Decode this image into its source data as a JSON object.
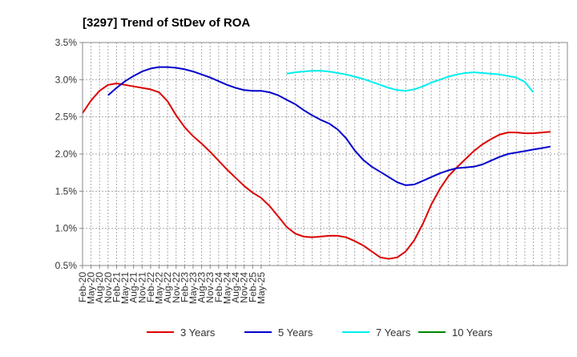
{
  "chart_data": {
    "type": "line",
    "title": "[3297]  Trend of StDev of ROA",
    "xlabel": "",
    "ylabel": "",
    "x_ticks": [
      "Feb-20",
      "May-20",
      "Aug-20",
      "Nov-20",
      "Feb-21",
      "May-21",
      "Aug-21",
      "Nov-21",
      "Feb-22",
      "May-22",
      "Aug-22",
      "Nov-22",
      "Feb-23",
      "May-23",
      "Aug-23",
      "Nov-23",
      "Feb-24",
      "May-24",
      "Aug-24",
      "Nov-24",
      "Feb-25",
      "May-25"
    ],
    "y_ticks": [
      "0.5%",
      "1.0%",
      "1.5%",
      "2.0%",
      "2.5%",
      "3.0%",
      "3.5%"
    ],
    "ylim": [
      0.5,
      3.5
    ],
    "grid": true,
    "legend_position": "bottom",
    "series": [
      {
        "name": "3 Years",
        "color": "#dd0000",
        "values": [
          2.55,
          2.72,
          2.85,
          2.93,
          2.95,
          2.93,
          2.91,
          2.89,
          2.87,
          2.83,
          2.71,
          2.52,
          2.36,
          2.24,
          2.14,
          2.03,
          1.91,
          1.79,
          1.68,
          1.57,
          1.48,
          1.41,
          1.3,
          1.16,
          1.02,
          0.93,
          0.89,
          0.88,
          0.89,
          0.9,
          0.9,
          0.88,
          0.83,
          0.77,
          0.69,
          0.61,
          0.59,
          0.61,
          0.69,
          0.84,
          1.06,
          1.32,
          1.53,
          1.7,
          1.82,
          1.93,
          2.04,
          2.13,
          2.2,
          2.26,
          2.29,
          2.29,
          2.28,
          2.28,
          2.29,
          2.3
        ]
      },
      {
        "name": "5 Years",
        "color": "#0000cc",
        "values": [
          null,
          null,
          null,
          2.79,
          2.89,
          2.98,
          3.05,
          3.11,
          3.15,
          3.17,
          3.17,
          3.16,
          3.14,
          3.11,
          3.07,
          3.03,
          2.98,
          2.93,
          2.89,
          2.86,
          2.85,
          2.85,
          2.83,
          2.79,
          2.73,
          2.67,
          2.59,
          2.52,
          2.46,
          2.41,
          2.33,
          2.21,
          2.05,
          1.92,
          1.83,
          1.76,
          1.69,
          1.62,
          1.58,
          1.59,
          1.64,
          1.69,
          1.74,
          1.78,
          1.81,
          1.82,
          1.83,
          1.86,
          1.91,
          1.96,
          2.0,
          2.02,
          2.04,
          2.06,
          2.08,
          2.1
        ]
      },
      {
        "name": "7 Years",
        "color": "#00eeee",
        "values": [
          null,
          null,
          null,
          null,
          null,
          null,
          null,
          null,
          null,
          null,
          null,
          null,
          null,
          null,
          null,
          null,
          null,
          null,
          null,
          null,
          null,
          null,
          null,
          null,
          3.08,
          3.1,
          3.11,
          3.12,
          3.12,
          3.11,
          3.09,
          3.07,
          3.04,
          3.01,
          2.97,
          2.93,
          2.89,
          2.86,
          2.85,
          2.87,
          2.91,
          2.96,
          3.0,
          3.04,
          3.07,
          3.09,
          3.1,
          3.09,
          3.08,
          3.07,
          3.05,
          3.03,
          2.97,
          2.83,
          null,
          null
        ]
      },
      {
        "name": "10 Years",
        "color": "#008800",
        "values": []
      }
    ]
  }
}
